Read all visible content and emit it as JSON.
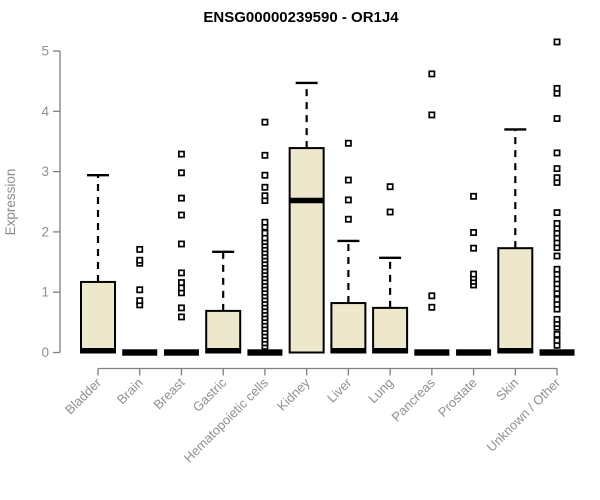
{
  "chart_data": {
    "type": "boxplot",
    "title": "ENSG00000239590 - OR1J4",
    "ylabel": "Expression",
    "xlabel": "",
    "ylim": [
      0,
      5
    ],
    "yticks": [
      0,
      1,
      2,
      3,
      4,
      5
    ],
    "grid": false,
    "legend": null,
    "categories": [
      "Bladder",
      "Brain",
      "Breast",
      "Gastric",
      "Hematopoietic cells",
      "Kidney",
      "Liver",
      "Lung",
      "Pancreas",
      "Prostate",
      "Skin",
      "Unknown / Other"
    ],
    "groups": [
      {
        "label": "Bladder",
        "q1": 0,
        "median": 0.03,
        "q3": 1.17,
        "whisker_low": 0,
        "whisker_high": 2.94,
        "outliers": []
      },
      {
        "label": "Brain",
        "q1": 0,
        "median": 0,
        "q3": 0,
        "whisker_low": 0,
        "whisker_high": 0,
        "outliers": [
          0.79,
          0.86,
          1.04,
          1.48,
          1.53,
          1.71
        ]
      },
      {
        "label": "Breast",
        "q1": 0,
        "median": 0,
        "q3": 0,
        "whisker_low": 0,
        "whisker_high": 0,
        "outliers": [
          0.59,
          0.74,
          0.99,
          1.07,
          1.16,
          1.32,
          1.8,
          2.28,
          2.56,
          2.98,
          3.29
        ]
      },
      {
        "label": "Gastric",
        "q1": 0,
        "median": 0.03,
        "q3": 0.69,
        "whisker_low": 0,
        "whisker_high": 1.67,
        "outliers": []
      },
      {
        "label": "Hematopoietic cells",
        "q1": 0,
        "median": 0,
        "q3": 0,
        "whisker_low": 0,
        "whisker_high": 0,
        "outliers": [
          0.1,
          0.16,
          0.22,
          0.28,
          0.34,
          0.4,
          0.46,
          0.52,
          0.58,
          0.64,
          0.7,
          0.76,
          0.82,
          0.88,
          0.94,
          1.0,
          1.06,
          1.12,
          1.18,
          1.24,
          1.3,
          1.36,
          1.42,
          1.48,
          1.54,
          1.6,
          1.66,
          1.72,
          1.78,
          1.84,
          1.9,
          1.98,
          2.08,
          2.16,
          2.52,
          2.6,
          2.74,
          2.94,
          3.27,
          3.82
        ]
      },
      {
        "label": "Kidney",
        "q1": 0,
        "median": 2.52,
        "q3": 3.39,
        "whisker_low": 0,
        "whisker_high": 4.47,
        "outliers": []
      },
      {
        "label": "Liver",
        "q1": 0,
        "median": 0.03,
        "q3": 0.82,
        "whisker_low": 0,
        "whisker_high": 1.85,
        "outliers": [
          2.21,
          2.53,
          2.86,
          3.47
        ]
      },
      {
        "label": "Lung",
        "q1": 0,
        "median": 0.03,
        "q3": 0.74,
        "whisker_low": 0,
        "whisker_high": 1.57,
        "outliers": [
          2.33,
          2.75
        ]
      },
      {
        "label": "Pancreas",
        "q1": 0,
        "median": 0,
        "q3": 0,
        "whisker_low": 0,
        "whisker_high": 0,
        "outliers": [
          0.75,
          0.94,
          3.94,
          4.62
        ]
      },
      {
        "label": "Prostate",
        "q1": 0,
        "median": 0,
        "q3": 0,
        "whisker_low": 0,
        "whisker_high": 0,
        "outliers": [
          1.12,
          1.18,
          1.24,
          1.3,
          1.73,
          1.99,
          2.59
        ]
      },
      {
        "label": "Skin",
        "q1": 0,
        "median": 0.03,
        "q3": 1.73,
        "whisker_low": 0,
        "whisker_high": 3.7,
        "outliers": []
      },
      {
        "label": "Unknown / Other",
        "q1": 0,
        "median": 0,
        "q3": 0,
        "whisker_low": 0,
        "whisker_high": 0,
        "outliers": [
          0.12,
          0.2,
          0.3,
          0.42,
          0.48,
          0.55,
          0.72,
          0.8,
          0.88,
          0.98,
          1.06,
          1.14,
          1.22,
          1.3,
          1.38,
          1.6,
          1.74,
          1.82,
          1.9,
          1.98,
          2.06,
          2.14,
          2.32,
          2.82,
          2.9,
          3.05,
          3.31,
          3.88,
          4.3,
          4.38,
          5.15
        ]
      }
    ],
    "colors": {
      "box_fill": "#ede7cb",
      "box_stroke": "#000000",
      "median": "#000000",
      "whisker": "#000000",
      "outlier_stroke": "#000000",
      "outlier_fill": "#ffffff",
      "axis": "#808080",
      "tick_label": "#909090",
      "title": "#000000",
      "background": "#ffffff"
    }
  }
}
